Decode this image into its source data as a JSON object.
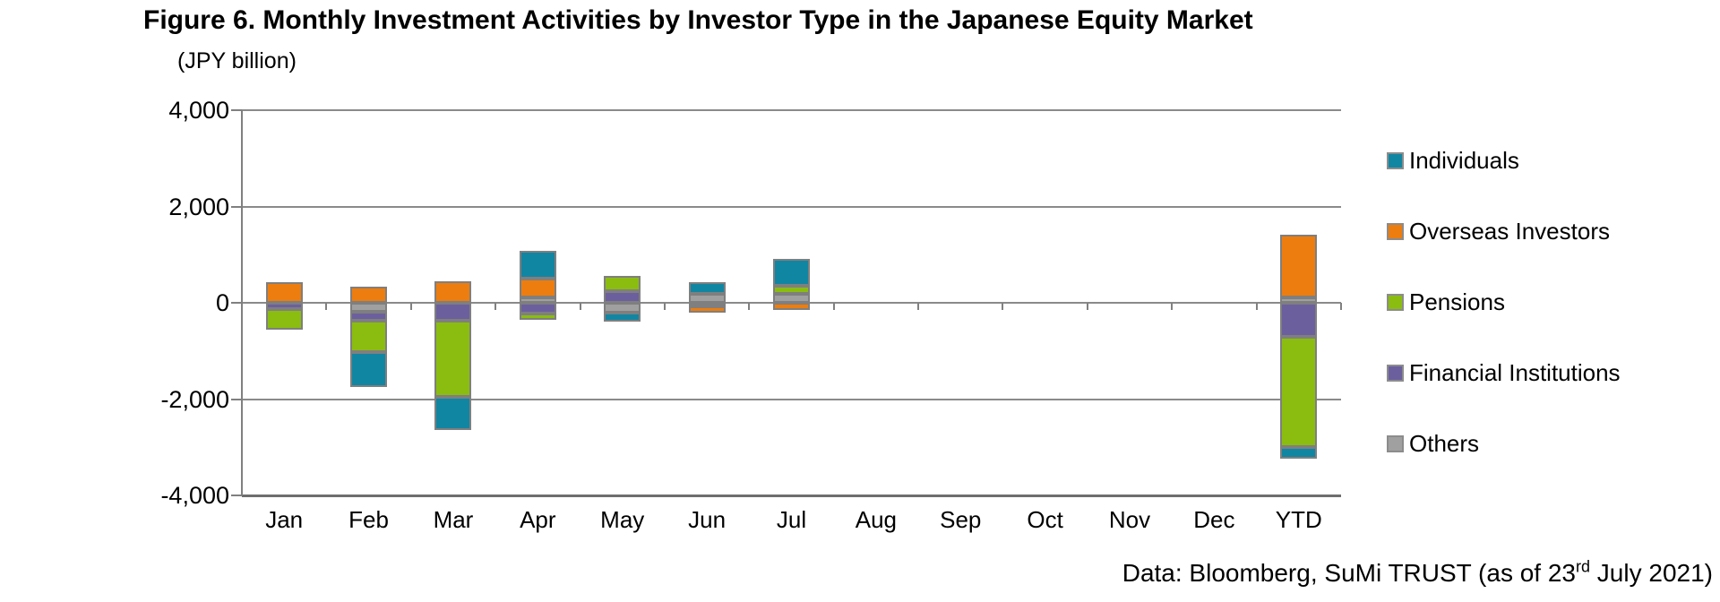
{
  "title": "Figure 6. Monthly Investment Activities by Investor Type in the Japanese Equity Market",
  "unit_label": "(JPY billion)",
  "source": {
    "prefix": "Data: Bloomberg, SuMi TRUST (as of 23",
    "superscript": "rd",
    "suffix": " July 2021)"
  },
  "legend": {
    "position": "right",
    "items": [
      "Individuals",
      "Overseas Investors",
      "Pensions",
      "Financial Institutions",
      "Others"
    ]
  },
  "chart_data": {
    "type": "bar",
    "stacked": true,
    "title": "Figure 6. Monthly Investment Activities by Investor Type in the Japanese Equity Market",
    "xlabel": "",
    "ylabel": "(JPY billion)",
    "categories": [
      "Jan",
      "Feb",
      "Mar",
      "Apr",
      "May",
      "Jun",
      "Jul",
      "Aug",
      "Sep",
      "Oct",
      "Nov",
      "Dec",
      "YTD"
    ],
    "series": [
      {
        "name": "Individuals",
        "color": "#1186a2",
        "values": [
          0,
          -730,
          -690,
          570,
          -185,
          235,
          550,
          0,
          0,
          0,
          0,
          0,
          -250
        ]
      },
      {
        "name": "Overseas Investors",
        "color": "#ed7d0e",
        "values": [
          420,
          330,
          450,
          390,
          0,
          -140,
          -140,
          0,
          0,
          0,
          0,
          0,
          1310
        ]
      },
      {
        "name": "Pensions",
        "color": "#8abd0f",
        "values": [
          -415,
          -650,
          -1590,
          -135,
          330,
          0,
          170,
          0,
          0,
          0,
          0,
          0,
          -2290
        ]
      },
      {
        "name": "Financial Institutions",
        "color": "#6c5f9e",
        "values": [
          -135,
          -195,
          -370,
          -220,
          235,
          -70,
          0,
          0,
          0,
          0,
          0,
          0,
          -700
        ]
      },
      {
        "name": "Others",
        "color": "#a0a0a0",
        "values": [
          0,
          -180,
          0,
          115,
          -205,
          195,
          185,
          0,
          0,
          0,
          0,
          0,
          110
        ]
      }
    ],
    "stack_order_from_axis": [
      "Others",
      "Financial Institutions",
      "Pensions",
      "Overseas Investors",
      "Individuals"
    ],
    "ylim": [
      -4000,
      4000
    ],
    "yticks": [
      4000,
      2000,
      0,
      -2000,
      -4000
    ],
    "ytick_labels": [
      "4,000",
      "2,000",
      "0",
      "-2,000",
      "-4,000"
    ],
    "grid": true,
    "legend_position": "right",
    "gridline_color": "#8a8a8a",
    "axis_color": "#808080"
  }
}
